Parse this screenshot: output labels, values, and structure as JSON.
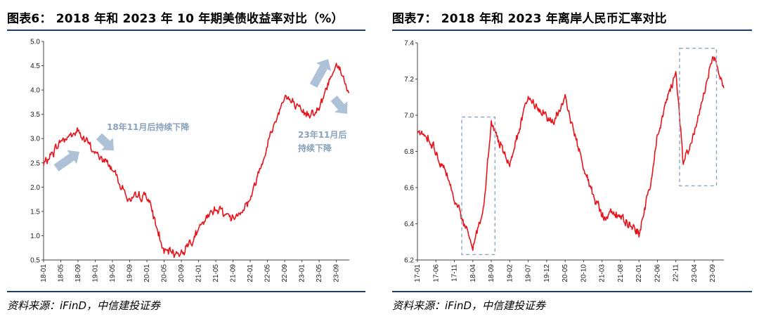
{
  "left": {
    "title": "图表6：  2018 年和 2023 年 10 年期美债收益率对比（%）",
    "source": "资料来源：iFinD，中信建投证券",
    "annotations": [
      "18年11月后持续下降",
      "23年11月后",
      "持续下降"
    ]
  },
  "right": {
    "title": "图表7：  2018 年和 2023 年离岸人民币汇率对比",
    "source": "资料来源：iFinD，中信建投证券"
  },
  "chart_data": [
    {
      "type": "line",
      "series": [
        {
          "color": "#e8141b",
          "x": [
            "18-01",
            "18-05",
            "18-09",
            "19-01",
            "19-05",
            "19-09",
            "20-01",
            "20-05",
            "20-09",
            "21-01",
            "21-05",
            "21-09",
            "22-01",
            "22-05",
            "22-09",
            "23-01",
            "23-05",
            "23-09",
            "23-12"
          ],
          "values": [
            2.45,
            2.95,
            3.15,
            2.7,
            2.4,
            1.7,
            1.85,
            0.65,
            0.65,
            1.1,
            1.6,
            1.35,
            1.75,
            2.9,
            3.9,
            3.5,
            3.6,
            4.6,
            3.95
          ]
        }
      ],
      "ylim": [
        0.5,
        5.0
      ],
      "yticks": [
        "0.5",
        "1.0",
        "1.5",
        "2.0",
        "2.5",
        "3.0",
        "3.5",
        "4.0",
        "4.5",
        "5.0"
      ],
      "xticks": [
        "18-01",
        "18-05",
        "18-09",
        "19-01",
        "19-05",
        "19-09",
        "20-01",
        "20-05",
        "20-09",
        "21-01",
        "21-05",
        "21-09",
        "22-01",
        "22-05",
        "22-09",
        "23-01",
        "23-05",
        "23-09"
      ]
    },
    {
      "type": "line",
      "series": [
        {
          "color": "#e8141b",
          "x": [
            "17-01",
            "17-04",
            "17-06",
            "17-11",
            "18-04",
            "18-07",
            "18-09",
            "19-02",
            "19-07",
            "19-12",
            "20-02",
            "20-05",
            "20-10",
            "21-03",
            "21-08",
            "22-01",
            "22-04",
            "22-06",
            "22-11",
            "23-01",
            "23-04",
            "23-09",
            "23-12"
          ],
          "values": [
            6.9,
            6.88,
            6.8,
            6.55,
            6.27,
            6.5,
            6.95,
            6.72,
            7.1,
            7.0,
            6.95,
            7.1,
            6.7,
            6.45,
            6.45,
            6.35,
            6.6,
            6.9,
            7.25,
            6.75,
            6.9,
            7.32,
            7.15
          ]
        }
      ],
      "ylim": [
        6.2,
        7.4
      ],
      "yticks": [
        "6.2",
        "6.4",
        "6.6",
        "6.8",
        "7.0",
        "7.2",
        "7.4"
      ],
      "xticks": [
        "17-01",
        "17-06",
        "17-11",
        "18-04",
        "18-09",
        "19-02",
        "19-07",
        "19-12",
        "20-05",
        "20-10",
        "21-03",
        "21-08",
        "22-01",
        "22-06",
        "22-11",
        "23-04",
        "23-09"
      ]
    }
  ]
}
